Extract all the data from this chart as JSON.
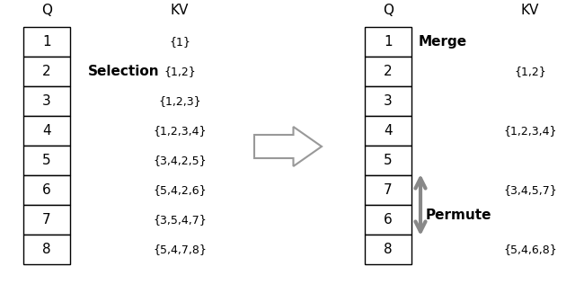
{
  "left_q_values": [
    "1",
    "2",
    "3",
    "4",
    "5",
    "6",
    "7",
    "8"
  ],
  "left_kv_labels": [
    "{1}",
    "{1,2}",
    "{1,2,3}",
    "{1,2,3,4}",
    "{3,4,2,5}",
    "{5,4,2,6}",
    "{3,5,4,7}",
    "{5,4,7,8}"
  ],
  "right_q_values": [
    "1",
    "2",
    "3",
    "4",
    "5",
    "7",
    "6",
    "8"
  ],
  "right_kv_labels": [
    "{1,2}",
    "{1,2,3,4}",
    "{3,4,5,7}",
    "{5,4,6,8}"
  ],
  "selection_label": "Selection",
  "merge_label": "Merge",
  "permute_label": "Permute",
  "q_header": "Q",
  "kv_header": "KV",
  "bg_color": "#ffffff",
  "box_color": "#000000",
  "text_color": "#000000",
  "arrow_color": "#888888"
}
